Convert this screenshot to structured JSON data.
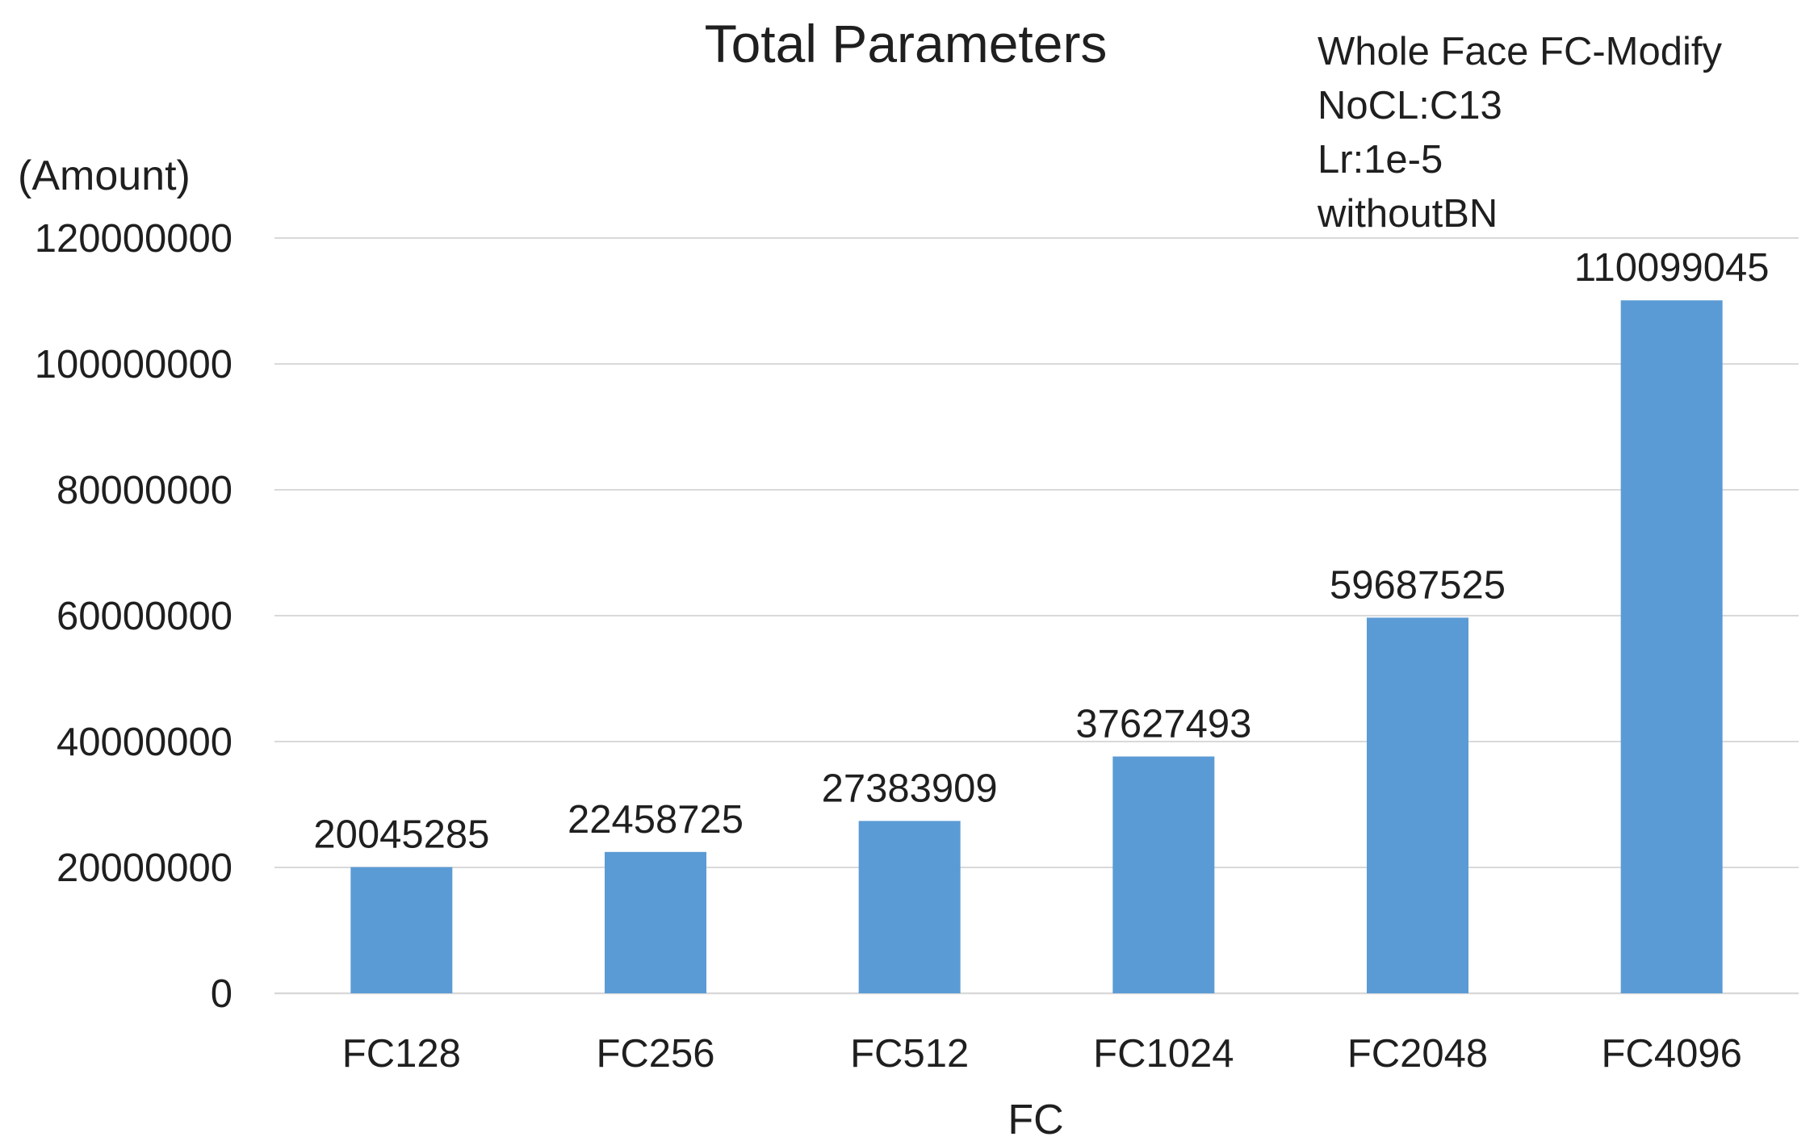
{
  "chart_data": {
    "type": "bar",
    "title": "Total Parameters",
    "annotation": [
      "Whole Face FC-Modify",
      "NoCL:C13",
      "Lr:1e-5",
      "withoutBN"
    ],
    "ylabel": "(Amount)",
    "xlabel": "FC",
    "categories": [
      "FC128",
      "FC256",
      "FC512",
      "FC1024",
      "FC2048",
      "FC4096"
    ],
    "values": [
      20045285,
      22458725,
      27383909,
      37627493,
      59687525,
      110099045
    ],
    "data_labels": [
      "20045285",
      "22458725",
      "27383909",
      "37627493",
      "59687525",
      "110099045"
    ],
    "ylim": [
      0,
      120000000
    ],
    "yticks": [
      0,
      20000000,
      40000000,
      60000000,
      80000000,
      100000000,
      120000000
    ],
    "ytick_labels": [
      "0",
      "20000000",
      "40000000",
      "60000000",
      "80000000",
      "100000000",
      "120000000"
    ],
    "grid": true,
    "legend": "none",
    "bar_color": "#5b9bd5"
  }
}
